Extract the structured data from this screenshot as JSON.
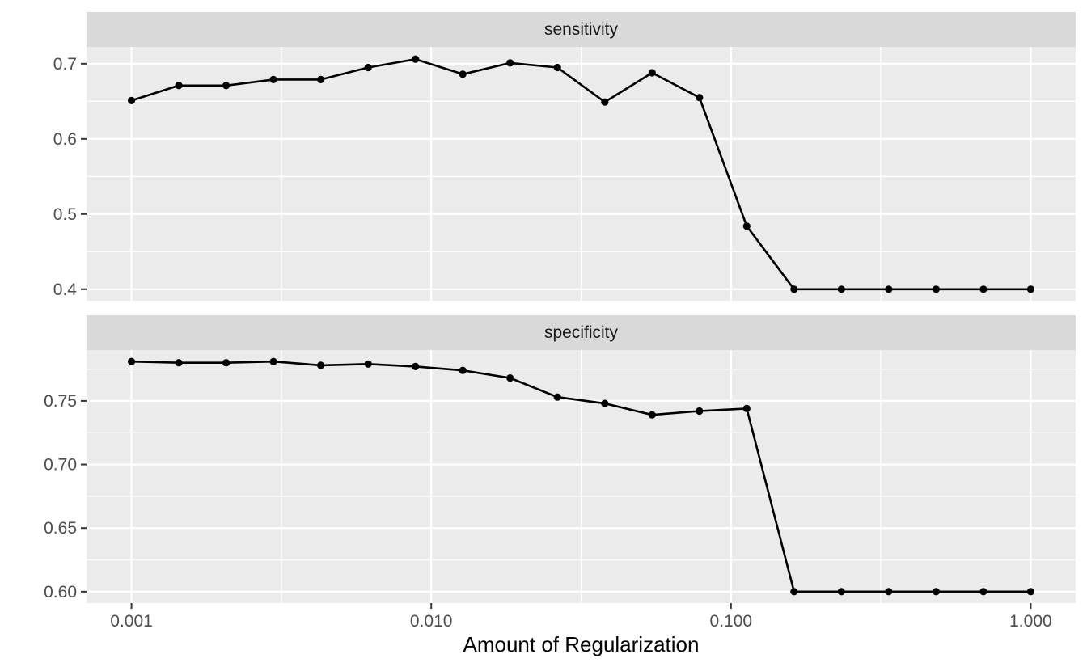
{
  "chart_data": {
    "type": "line",
    "title": "",
    "xlabel": "Amount of Regularization",
    "ylabel": "",
    "x_scale": "log10",
    "grid": "on",
    "legend": "none",
    "marker": "filled-circle",
    "x": [
      0.001,
      0.001438,
      0.002069,
      0.002976,
      0.004281,
      0.006158,
      0.008859,
      0.012743,
      0.01833,
      0.026367,
      0.037927,
      0.054556,
      0.078476,
      0.112884,
      0.162378,
      0.233572,
      0.335982,
      0.483293,
      0.695193,
      1.0
    ],
    "x_ticks": {
      "values": [
        0.001,
        0.01,
        0.1,
        1.0
      ],
      "labels": [
        "0.001",
        "0.010",
        "0.100",
        "1.000"
      ]
    },
    "x_minor_log": [
      -2.5,
      -1.5,
      -0.5
    ],
    "xlim_log": [
      -3.15,
      0.15
    ],
    "facets": [
      {
        "label": "sensitivity",
        "values": [
          0.651,
          0.671,
          0.671,
          0.679,
          0.679,
          0.695,
          0.706,
          0.686,
          0.701,
          0.695,
          0.649,
          0.688,
          0.655,
          0.484,
          0.4,
          0.4,
          0.4,
          0.4,
          0.4,
          0.4
        ],
        "y_ticks": {
          "values": [
            0.7,
            0.6,
            0.5,
            0.4
          ],
          "labels": [
            "0.7",
            "0.6",
            "0.5",
            "0.4"
          ]
        },
        "y_minor": [
          0.65,
          0.55,
          0.45
        ],
        "ylim": [
          0.3847,
          0.7224
        ]
      },
      {
        "label": "specificity",
        "values": [
          0.781,
          0.78,
          0.78,
          0.781,
          0.778,
          0.779,
          0.777,
          0.774,
          0.768,
          0.753,
          0.748,
          0.739,
          0.742,
          0.744,
          0.6,
          0.6,
          0.6,
          0.6,
          0.6,
          0.6
        ],
        "y_ticks": {
          "values": [
            0.75,
            0.7,
            0.65,
            0.6
          ],
          "labels": [
            "0.75",
            "0.70",
            "0.65",
            "0.60"
          ]
        },
        "y_minor": [
          0.775,
          0.725,
          0.675,
          0.625
        ],
        "ylim": [
          0.591,
          0.79
        ]
      }
    ],
    "colors": {
      "line": "#000000",
      "point": "#000000",
      "panel_bg": "#EBEBEB",
      "strip_bg": "#D9D9D9",
      "grid": "#FFFFFF",
      "tick_mark": "#333333",
      "axis_text": "#4D4D4D",
      "strip_text": "#1A1A1A",
      "axis_title": "#000000"
    }
  }
}
